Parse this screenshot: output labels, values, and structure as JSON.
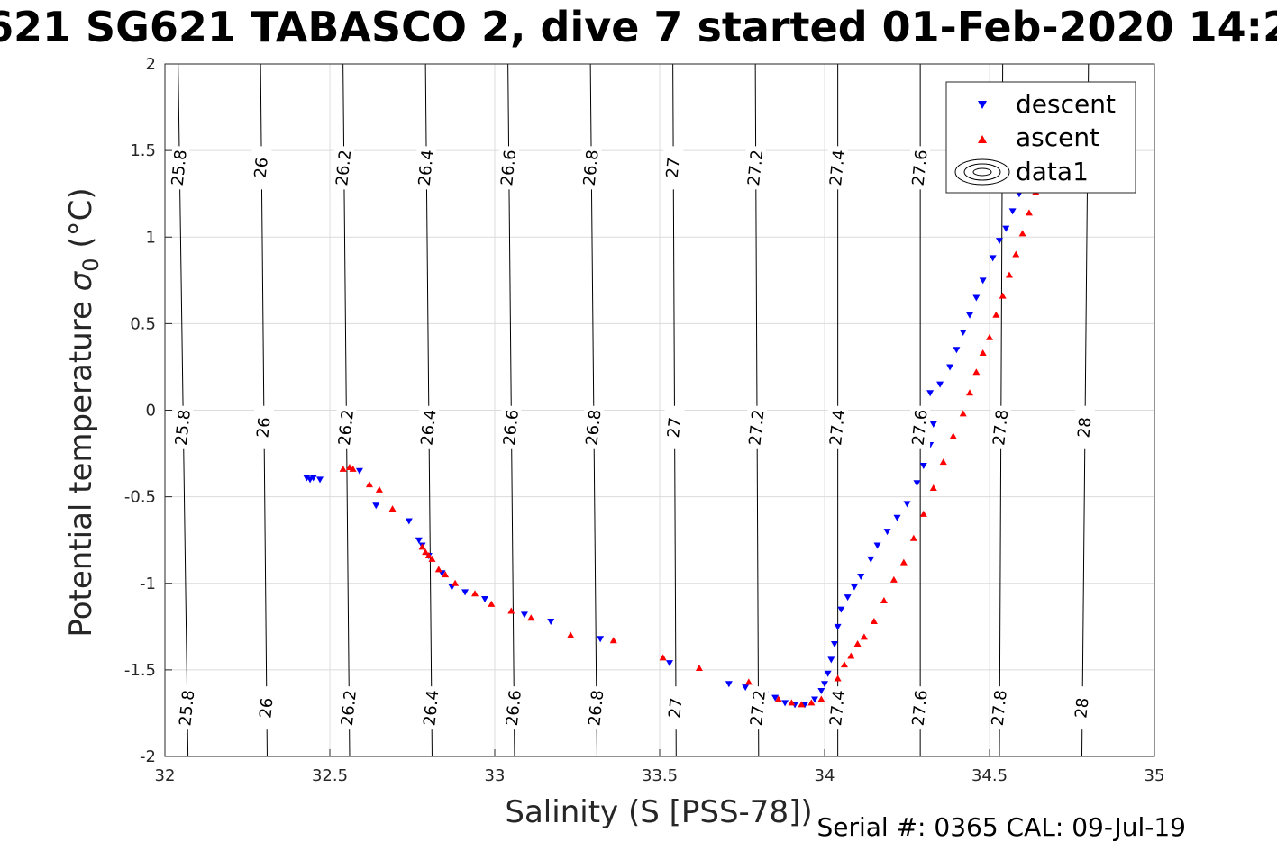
{
  "chart_data": {
    "type": "scatter",
    "title": "621 SG621 TABASCO 2, dive 7 started 01-Feb-2020 14:2",
    "xlabel": "Salinity (S [PSS-78])",
    "ylabel_main": "Potential temperature ",
    "ylabel_sigma": "σ",
    "ylabel_sub": "0",
    "ylabel_unit": " (°C)",
    "footer": "Serial #: 0365  CAL: 09-Jul-19",
    "xlim": [
      32,
      35
    ],
    "ylim": [
      -2,
      2
    ],
    "x_ticks": [
      32,
      32.5,
      33,
      33.5,
      34,
      34.5,
      35
    ],
    "x_tick_labels": [
      "32",
      "32.5",
      "33",
      "33.5",
      "34",
      "34.5",
      "35"
    ],
    "y_ticks": [
      -2,
      -1.5,
      -1,
      -0.5,
      0,
      0.5,
      1,
      1.5,
      2
    ],
    "y_tick_labels": [
      "-2",
      "-1.5",
      "-1",
      "-0.5",
      "0",
      "0.5",
      "1",
      "1.5",
      "2"
    ],
    "grid": true,
    "legend_position": "top-right",
    "legend": [
      "descent",
      "ascent",
      "data1"
    ],
    "isopycnals": [
      {
        "label": "25.8",
        "x_bottom": 32.07,
        "x_top": 32.04
      },
      {
        "label": "26",
        "x_bottom": 32.31,
        "x_top": 32.29
      },
      {
        "label": "26.2",
        "x_bottom": 32.56,
        "x_top": 32.54
      },
      {
        "label": "26.4",
        "x_bottom": 32.81,
        "x_top": 32.79
      },
      {
        "label": "26.6",
        "x_bottom": 33.06,
        "x_top": 33.04
      },
      {
        "label": "26.8",
        "x_bottom": 33.31,
        "x_top": 33.29
      },
      {
        "label": "27",
        "x_bottom": 33.55,
        "x_top": 33.54
      },
      {
        "label": "27.2",
        "x_bottom": 33.8,
        "x_top": 33.79
      },
      {
        "label": "27.4",
        "x_bottom": 34.04,
        "x_top": 34.04
      },
      {
        "label": "27.6",
        "x_bottom": 34.29,
        "x_top": 34.29
      },
      {
        "label": "27.8",
        "x_bottom": 34.53,
        "x_top": 34.54
      },
      {
        "label": "28",
        "x_bottom": 34.78,
        "x_top": 34.8
      }
    ],
    "contour_label_rows": [
      1.4,
      -0.1,
      -1.72
    ],
    "series": [
      {
        "name": "descent",
        "color": "#0000ff",
        "marker": "triangle-down",
        "points": [
          [
            32.43,
            -0.39
          ],
          [
            32.44,
            -0.4
          ],
          [
            32.45,
            -0.39
          ],
          [
            32.47,
            -0.4
          ],
          [
            32.59,
            -0.35
          ],
          [
            32.64,
            -0.55
          ],
          [
            32.74,
            -0.64
          ],
          [
            32.77,
            -0.75
          ],
          [
            32.78,
            -0.78
          ],
          [
            32.8,
            -0.84
          ],
          [
            32.84,
            -0.94
          ],
          [
            32.87,
            -1.02
          ],
          [
            32.91,
            -1.05
          ],
          [
            32.97,
            -1.09
          ],
          [
            33.09,
            -1.18
          ],
          [
            33.17,
            -1.22
          ],
          [
            33.32,
            -1.32
          ],
          [
            33.53,
            -1.46
          ],
          [
            33.71,
            -1.58
          ],
          [
            33.76,
            -1.6
          ],
          [
            33.8,
            -1.62
          ],
          [
            33.82,
            -1.64
          ],
          [
            33.85,
            -1.66
          ],
          [
            33.88,
            -1.69
          ],
          [
            33.91,
            -1.7
          ],
          [
            33.94,
            -1.7
          ],
          [
            33.97,
            -1.67
          ],
          [
            33.99,
            -1.62
          ],
          [
            34.0,
            -1.58
          ],
          [
            34.01,
            -1.52
          ],
          [
            34.02,
            -1.44
          ],
          [
            34.03,
            -1.35
          ],
          [
            34.04,
            -1.25
          ],
          [
            34.05,
            -1.15
          ],
          [
            34.07,
            -1.08
          ],
          [
            34.09,
            -1.02
          ],
          [
            34.11,
            -0.96
          ],
          [
            34.14,
            -0.86
          ],
          [
            34.16,
            -0.78
          ],
          [
            34.19,
            -0.7
          ],
          [
            34.22,
            -0.62
          ],
          [
            34.25,
            -0.54
          ],
          [
            34.28,
            -0.42
          ],
          [
            34.3,
            -0.32
          ],
          [
            34.32,
            -0.2
          ],
          [
            34.33,
            -0.08
          ],
          [
            34.32,
            0.1
          ],
          [
            34.35,
            0.15
          ],
          [
            34.38,
            0.25
          ],
          [
            34.4,
            0.35
          ],
          [
            34.42,
            0.45
          ],
          [
            34.44,
            0.55
          ],
          [
            34.46,
            0.65
          ],
          [
            34.48,
            0.75
          ],
          [
            34.51,
            0.88
          ],
          [
            34.53,
            0.98
          ],
          [
            34.55,
            1.05
          ],
          [
            34.57,
            1.15
          ],
          [
            34.59,
            1.25
          ],
          [
            34.61,
            1.35
          ]
        ]
      },
      {
        "name": "ascent",
        "color": "#ff0000",
        "marker": "triangle-up",
        "points": [
          [
            32.54,
            -0.34
          ],
          [
            32.56,
            -0.33
          ],
          [
            32.57,
            -0.34
          ],
          [
            32.62,
            -0.43
          ],
          [
            32.65,
            -0.46
          ],
          [
            32.69,
            -0.57
          ],
          [
            32.78,
            -0.79
          ],
          [
            32.79,
            -0.82
          ],
          [
            32.8,
            -0.84
          ],
          [
            32.81,
            -0.86
          ],
          [
            32.83,
            -0.92
          ],
          [
            32.85,
            -0.95
          ],
          [
            32.88,
            -1.0
          ],
          [
            32.94,
            -1.06
          ],
          [
            32.99,
            -1.12
          ],
          [
            33.05,
            -1.16
          ],
          [
            33.11,
            -1.2
          ],
          [
            33.23,
            -1.3
          ],
          [
            33.36,
            -1.33
          ],
          [
            33.51,
            -1.43
          ],
          [
            33.62,
            -1.49
          ],
          [
            33.77,
            -1.57
          ],
          [
            33.82,
            -1.62
          ],
          [
            33.86,
            -1.67
          ],
          [
            33.9,
            -1.69
          ],
          [
            33.93,
            -1.7
          ],
          [
            33.96,
            -1.69
          ],
          [
            33.99,
            -1.67
          ],
          [
            34.02,
            -1.62
          ],
          [
            34.04,
            -1.55
          ],
          [
            34.06,
            -1.47
          ],
          [
            34.08,
            -1.42
          ],
          [
            34.1,
            -1.35
          ],
          [
            34.12,
            -1.31
          ],
          [
            34.15,
            -1.22
          ],
          [
            34.18,
            -1.1
          ],
          [
            34.21,
            -0.98
          ],
          [
            34.24,
            -0.88
          ],
          [
            34.27,
            -0.74
          ],
          [
            34.3,
            -0.6
          ],
          [
            34.33,
            -0.45
          ],
          [
            34.36,
            -0.3
          ],
          [
            34.39,
            -0.15
          ],
          [
            34.42,
            -0.02
          ],
          [
            34.44,
            0.1
          ],
          [
            34.46,
            0.22
          ],
          [
            34.48,
            0.33
          ],
          [
            34.5,
            0.42
          ],
          [
            34.52,
            0.55
          ],
          [
            34.54,
            0.66
          ],
          [
            34.56,
            0.78
          ],
          [
            34.58,
            0.9
          ],
          [
            34.6,
            1.02
          ],
          [
            34.62,
            1.14
          ],
          [
            34.64,
            1.26
          ],
          [
            34.66,
            1.36
          ]
        ]
      }
    ]
  }
}
